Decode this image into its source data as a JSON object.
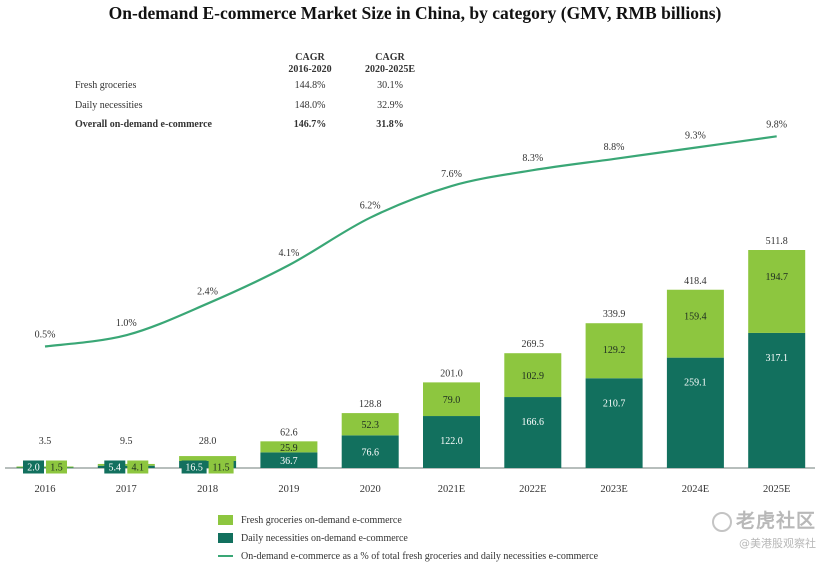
{
  "title": "On-demand E-commerce Market Size in China, by category (GMV, RMB billions)",
  "cagr": {
    "header1": "CAGR",
    "header1b": "2016-2020",
    "header2": "CAGR",
    "header2b": "2020-2025E",
    "rows": [
      {
        "label": "Fresh groceries",
        "v1": "144.8%",
        "v2": "30.1%"
      },
      {
        "label": "Daily necessities",
        "v1": "148.0%",
        "v2": "32.9%"
      },
      {
        "label": "Overall on-demand e-commerce",
        "v1": "146.7%",
        "v2": "31.8%"
      }
    ]
  },
  "legend": {
    "fresh": "Fresh groceries on-demand e-commerce",
    "daily": "Daily necessities on-demand e-commerce",
    "line": "On-demand e-commerce as a % of total fresh groceries and daily necessities e-commerce"
  },
  "colors": {
    "fresh": "#8dc63f",
    "daily": "#12705e",
    "line": "#3aa776"
  },
  "watermark": {
    "line1": "老虎社区",
    "line2": "@美港股观察社"
  },
  "chart_data": {
    "type": "bar",
    "stacked": true,
    "categories": [
      "2016",
      "2017",
      "2018",
      "2019",
      "2020",
      "2021E",
      "2022E",
      "2023E",
      "2024E",
      "2025E"
    ],
    "series": [
      {
        "name": "Daily necessities on-demand e-commerce",
        "values": [
          2.0,
          5.4,
          16.5,
          36.7,
          76.6,
          122.0,
          166.6,
          210.7,
          259.1,
          317.1
        ]
      },
      {
        "name": "Fresh groceries on-demand e-commerce",
        "values": [
          1.5,
          4.1,
          11.5,
          25.9,
          52.3,
          79.0,
          102.9,
          129.2,
          159.4,
          194.7
        ]
      }
    ],
    "totals": [
      3.5,
      9.5,
      28.0,
      62.6,
      128.8,
      201.0,
      269.5,
      339.9,
      418.4,
      511.8
    ],
    "line_series": {
      "name": "On-demand e-commerce as a % of total fresh groceries and daily necessities e-commerce",
      "values": [
        0.5,
        1.0,
        2.4,
        4.1,
        6.2,
        7.6,
        8.3,
        8.8,
        9.3,
        9.8
      ],
      "labels": [
        "0.5%",
        "1.0%",
        "2.4%",
        "4.1%",
        "6.2%",
        "7.6%",
        "8.3%",
        "8.8%",
        "9.3%",
        "9.8%"
      ]
    },
    "ylim_bars": [
      0,
      580
    ],
    "ylim_line": [
      0,
      10
    ],
    "title": "On-demand E-commerce Market Size in China, by category (GMV, RMB billions)",
    "xlabel": "",
    "ylabel": "",
    "grid": false
  }
}
